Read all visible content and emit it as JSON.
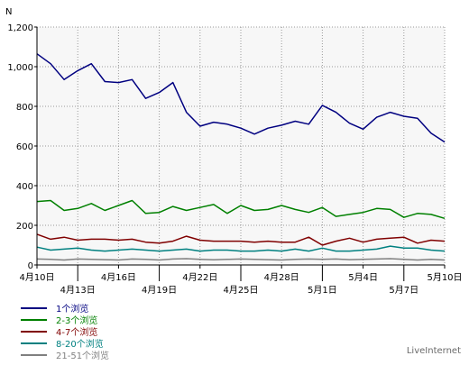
{
  "chart_data": {
    "type": "line",
    "ylabel": "N",
    "ylim": [
      0,
      1200
    ],
    "y_ticks": [
      0,
      200,
      400,
      600,
      800,
      1000,
      1200
    ],
    "y_tick_labels": [
      "0",
      "200",
      "400",
      "600",
      "800",
      "1,000",
      "1,200"
    ],
    "grid": true,
    "x": [
      "4月10日",
      "4月11日",
      "4月12日",
      "4月13日",
      "4月14日",
      "4月15日",
      "4月16日",
      "4月17日",
      "4月18日",
      "4月19日",
      "4月20日",
      "4月21日",
      "4月22日",
      "4月23日",
      "4月24日",
      "4月25日",
      "4月26日",
      "4月27日",
      "4月28日",
      "4月29日",
      "4月30日",
      "5月1日",
      "5月2日",
      "5月3日",
      "5月4日",
      "5月5日",
      "5月6日",
      "5月7日",
      "5月8日",
      "5月9日",
      "5月10日"
    ],
    "x_tick_labels_row1": [
      "4月10日",
      "4月16日",
      "4月22日",
      "4月28日",
      "5月4日",
      "5月10日"
    ],
    "x_tick_labels_row2": [
      "4月13日",
      "4月19日",
      "4月25日",
      "5月1日",
      "5月7日"
    ],
    "series": [
      {
        "name": "1个浏览",
        "color": "#000080",
        "values": [
          1065,
          1015,
          935,
          980,
          1015,
          925,
          920,
          935,
          840,
          870,
          920,
          770,
          700,
          720,
          710,
          690,
          660,
          690,
          705,
          725,
          710,
          805,
          770,
          715,
          685,
          745,
          770,
          750,
          740,
          665,
          620
        ]
      },
      {
        "name": "2-3个浏览",
        "color": "#008000",
        "values": [
          320,
          325,
          275,
          285,
          310,
          275,
          300,
          325,
          260,
          265,
          295,
          275,
          290,
          305,
          260,
          300,
          275,
          280,
          300,
          280,
          265,
          290,
          245,
          255,
          265,
          285,
          280,
          240,
          260,
          255,
          235
        ]
      },
      {
        "name": "4-7个浏览",
        "color": "#800000",
        "values": [
          155,
          130,
          140,
          125,
          130,
          130,
          125,
          130,
          115,
          110,
          120,
          145,
          125,
          120,
          120,
          120,
          115,
          120,
          115,
          115,
          140,
          100,
          120,
          135,
          115,
          130,
          135,
          140,
          110,
          125,
          120
        ]
      },
      {
        "name": "8-20个浏览",
        "color": "#008080",
        "values": [
          90,
          75,
          80,
          85,
          75,
          70,
          75,
          80,
          75,
          70,
          75,
          80,
          70,
          75,
          75,
          70,
          70,
          75,
          70,
          80,
          70,
          85,
          70,
          70,
          75,
          80,
          95,
          85,
          85,
          75,
          70
        ]
      },
      {
        "name": "21-51个浏览",
        "color": "#808080",
        "values": [
          30,
          28,
          25,
          30,
          28,
          27,
          25,
          30,
          28,
          25,
          30,
          32,
          28,
          26,
          28,
          30,
          28,
          27,
          25,
          28,
          30,
          28,
          30,
          27,
          28,
          30,
          32,
          28,
          25,
          28,
          25
        ]
      }
    ]
  },
  "brand": "LiveInternet"
}
